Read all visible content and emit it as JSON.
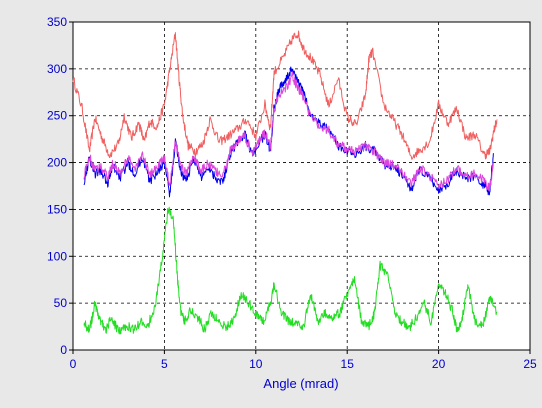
{
  "chart_data": {
    "type": "line",
    "title": "",
    "xlabel": "Angle (mrad)",
    "ylabel": "",
    "xlim": [
      0,
      25
    ],
    "ylim": [
      0,
      350
    ],
    "xticks": [
      0,
      5,
      10,
      15,
      20,
      25
    ],
    "yticks": [
      0,
      50,
      100,
      150,
      200,
      250,
      300,
      350
    ],
    "grid": true,
    "legend": "none",
    "series": [
      {
        "color": "#f06060",
        "x": [
          0.0,
          0.5,
          0.9,
          1.2,
          1.6,
          2.0,
          2.5,
          2.8,
          3.2,
          3.6,
          3.9,
          4.2,
          4.6,
          5.0,
          5.3,
          5.6,
          5.8,
          6.0,
          6.3,
          6.7,
          7.1,
          7.5,
          8.0,
          8.5,
          9.0,
          9.5,
          10.0,
          10.5,
          10.8,
          11.0,
          11.5,
          12.0,
          12.3,
          12.6,
          13.0,
          13.5,
          14.0,
          14.5,
          15.0,
          15.5,
          16.0,
          16.2,
          16.4,
          17.0,
          17.5,
          18.0,
          18.5,
          19.0,
          19.5,
          20.0,
          20.5,
          21.0,
          21.5,
          22.0,
          22.5,
          22.8,
          23.0,
          23.2
        ],
        "y": [
          290,
          258,
          212,
          248,
          226,
          208,
          220,
          250,
          226,
          242,
          222,
          244,
          238,
          262,
          300,
          338,
          290,
          250,
          218,
          212,
          220,
          246,
          222,
          228,
          236,
          246,
          228,
          262,
          236,
          296,
          312,
          332,
          338,
          322,
          312,
          294,
          260,
          290,
          248,
          240,
          272,
          312,
          318,
          262,
          246,
          230,
          206,
          214,
          222,
          262,
          242,
          258,
          226,
          230,
          208,
          212,
          232,
          246
        ]
      },
      {
        "color": "#0000ee",
        "x": [
          0.6,
          0.9,
          1.2,
          1.5,
          1.9,
          2.2,
          2.6,
          3.0,
          3.4,
          3.8,
          4.2,
          4.6,
          5.0,
          5.3,
          5.6,
          5.9,
          6.2,
          6.6,
          7.0,
          7.4,
          7.8,
          8.2,
          8.6,
          9.0,
          9.4,
          9.8,
          10.2,
          10.5,
          10.8,
          11.0,
          11.3,
          11.7,
          12.0,
          12.3,
          12.6,
          13.0,
          13.5,
          14.0,
          14.5,
          15.0,
          15.5,
          16.0,
          16.5,
          17.0,
          17.5,
          18.0,
          18.5,
          19.0,
          19.5,
          20.0,
          20.5,
          21.0,
          21.5,
          22.0,
          22.5,
          22.8,
          23.0
        ],
        "y": [
          180,
          205,
          188,
          192,
          178,
          196,
          184,
          200,
          188,
          206,
          180,
          190,
          200,
          165,
          222,
          190,
          180,
          206,
          184,
          196,
          184,
          180,
          210,
          222,
          230,
          208,
          222,
          230,
          212,
          260,
          280,
          290,
          300,
          286,
          276,
          250,
          242,
          236,
          218,
          212,
          210,
          218,
          212,
          198,
          196,
          186,
          172,
          192,
          184,
          170,
          178,
          192,
          182,
          186,
          175,
          168,
          210
        ]
      },
      {
        "color": "#dd44dd",
        "x": [
          0.6,
          0.9,
          1.2,
          1.5,
          1.9,
          2.2,
          2.6,
          3.0,
          3.4,
          3.8,
          4.2,
          4.6,
          5.0,
          5.3,
          5.6,
          5.9,
          6.2,
          6.6,
          7.0,
          7.4,
          7.8,
          8.2,
          8.6,
          9.0,
          9.4,
          9.8,
          10.2,
          10.5,
          10.8,
          11.0,
          11.3,
          11.7,
          12.0,
          12.3,
          12.6,
          13.0,
          13.5,
          14.0,
          14.5,
          15.0,
          15.5,
          16.0,
          16.5,
          17.0,
          17.5,
          18.0,
          18.5,
          19.0,
          19.5,
          20.0,
          20.5,
          21.0,
          21.5,
          22.0,
          22.5,
          22.8,
          23.0
        ],
        "y": [
          186,
          206,
          192,
          196,
          184,
          200,
          188,
          204,
          194,
          208,
          186,
          196,
          204,
          176,
          224,
          196,
          188,
          208,
          190,
          200,
          190,
          186,
          212,
          222,
          228,
          210,
          224,
          232,
          216,
          256,
          274,
          282,
          292,
          280,
          270,
          248,
          240,
          234,
          220,
          214,
          212,
          218,
          212,
          200,
          198,
          190,
          178,
          194,
          186,
          175,
          182,
          194,
          186,
          188,
          180,
          172,
          200
        ]
      },
      {
        "color": "#22dd22",
        "x": [
          0.6,
          0.9,
          1.2,
          1.5,
          1.8,
          2.1,
          2.5,
          2.9,
          3.3,
          3.7,
          4.1,
          4.5,
          4.9,
          5.2,
          5.5,
          5.7,
          5.9,
          6.1,
          6.4,
          6.8,
          7.2,
          7.6,
          8.0,
          8.4,
          8.8,
          9.2,
          9.6,
          10.0,
          10.4,
          10.8,
          11.0,
          11.4,
          11.8,
          12.2,
          12.6,
          13.0,
          13.4,
          13.8,
          14.2,
          14.6,
          15.0,
          15.4,
          15.8,
          16.2,
          16.5,
          16.8,
          17.2,
          17.6,
          18.0,
          18.4,
          18.8,
          19.2,
          19.6,
          20.0,
          20.4,
          20.8,
          21.0,
          21.3,
          21.6,
          22.0,
          22.4,
          22.8,
          23.2
        ],
        "y": [
          30,
          20,
          50,
          30,
          22,
          34,
          20,
          26,
          22,
          30,
          26,
          48,
          100,
          150,
          138,
          80,
          40,
          30,
          42,
          36,
          22,
          40,
          30,
          24,
          32,
          60,
          50,
          40,
          30,
          50,
          70,
          40,
          30,
          28,
          24,
          60,
          30,
          40,
          35,
          40,
          60,
          75,
          28,
          26,
          40,
          90,
          80,
          40,
          30,
          24,
          35,
          50,
          30,
          70,
          60,
          40,
          20,
          35,
          70,
          30,
          25,
          55,
          40
        ]
      }
    ]
  }
}
